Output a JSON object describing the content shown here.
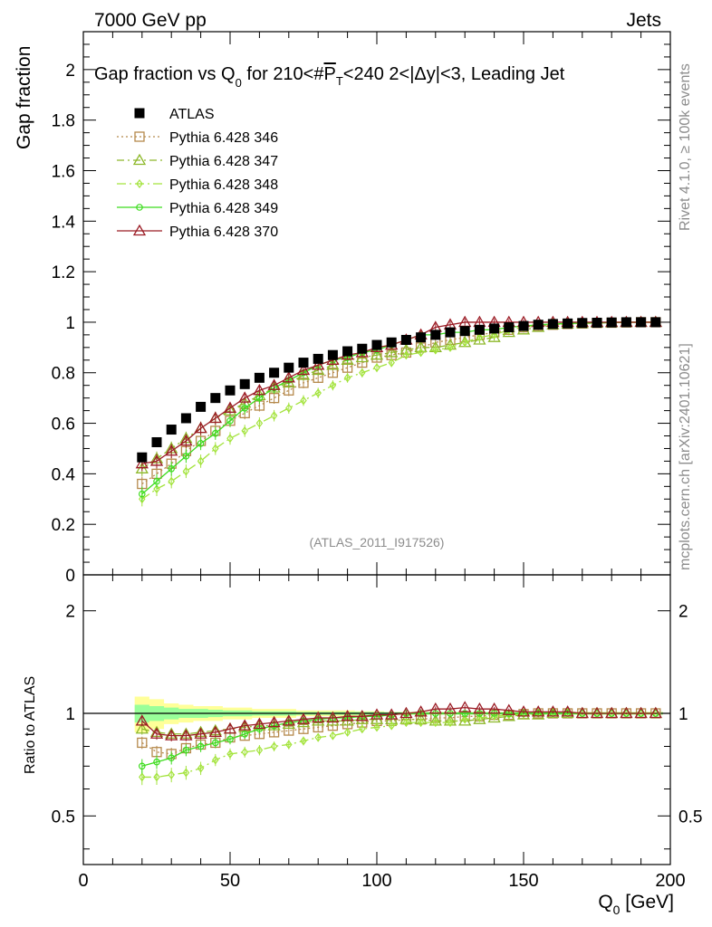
{
  "header": {
    "left": "7000 GeV pp",
    "right": "Jets"
  },
  "side_labels": {
    "rivet": "Rivet 4.1.0, ≥ 100k events",
    "mcplots": "mcplots.cern.ch [arXiv:2401.10621]"
  },
  "colors": {
    "atlas": "#000000",
    "p346": "#b5894b",
    "p347": "#8db82a",
    "p348": "#a3e33c",
    "p349": "#3cdc1d",
    "p370": "#9b1c25",
    "band_yellow": "#ffff99",
    "band_green": "#99ff99"
  },
  "chart_data": [
    {
      "type": "line",
      "title": "Gap fraction vs Q0 for 210<#PT<240  2<|Δy|<3, Leading Jet",
      "title_parts": {
        "a": "Gap fraction vs Q",
        "sub": "0",
        "b": " for 210<#",
        "over": "P",
        "sub2": "T",
        "c": "<240  2<|Δy|<3, Leading Jet"
      },
      "ylabel": "Gap fraction",
      "watermark": "(ATLAS_2011_I917526)",
      "xlim": [
        0,
        200
      ],
      "ylim": [
        0,
        2.15
      ],
      "yticks": [
        "0",
        "0.2",
        "0.4",
        "0.6",
        "0.8",
        "1",
        "1.2",
        "1.4",
        "1.6",
        "1.8",
        "2"
      ],
      "legend": {
        "position": "top-left"
      },
      "x": [
        20,
        25,
        30,
        35,
        40,
        45,
        50,
        55,
        60,
        65,
        70,
        75,
        80,
        85,
        90,
        95,
        100,
        105,
        110,
        115,
        120,
        125,
        130,
        135,
        140,
        145,
        150,
        155,
        160,
        165,
        170,
        175,
        180,
        185,
        190,
        195
      ],
      "series": [
        {
          "key": "atlas",
          "name": "ATLAS",
          "marker": "filled-square",
          "values": [
            0.465,
            0.525,
            0.575,
            0.62,
            0.665,
            0.7,
            0.73,
            0.755,
            0.78,
            0.8,
            0.82,
            0.84,
            0.855,
            0.87,
            0.885,
            0.895,
            0.91,
            0.92,
            0.93,
            0.94,
            0.95,
            0.96,
            0.965,
            0.97,
            0.975,
            0.98,
            0.985,
            0.99,
            0.993,
            0.995,
            0.997,
            0.998,
            0.999,
            1.0,
            1.0,
            1.0
          ]
        },
        {
          "key": "p346",
          "name": "Pythia 6.428 346",
          "marker": "open-square",
          "dash": "2,3",
          "values": [
            0.36,
            0.4,
            0.44,
            0.49,
            0.53,
            0.57,
            0.61,
            0.64,
            0.67,
            0.7,
            0.73,
            0.76,
            0.78,
            0.8,
            0.82,
            0.84,
            0.86,
            0.87,
            0.88,
            0.9,
            0.92,
            0.93,
            0.94,
            0.95,
            0.96,
            0.97,
            0.98,
            0.985,
            0.99,
            0.993,
            0.995,
            0.997,
            0.998,
            0.999,
            1.0,
            1.0
          ]
        },
        {
          "key": "p347",
          "name": "Pythia 6.428 347",
          "marker": "open-triangle",
          "dash": "8,4,2,4",
          "values": [
            0.42,
            0.46,
            0.5,
            0.54,
            0.58,
            0.62,
            0.65,
            0.68,
            0.71,
            0.74,
            0.76,
            0.79,
            0.81,
            0.83,
            0.85,
            0.86,
            0.87,
            0.88,
            0.89,
            0.9,
            0.9,
            0.91,
            0.92,
            0.93,
            0.94,
            0.96,
            0.97,
            0.98,
            0.99,
            0.993,
            0.995,
            0.997,
            0.998,
            0.999,
            1.0,
            1.0
          ]
        },
        {
          "key": "p348",
          "name": "Pythia 6.428 348",
          "marker": "open-diamond",
          "dash": "10,4,2,4",
          "values": [
            0.3,
            0.34,
            0.37,
            0.41,
            0.45,
            0.5,
            0.54,
            0.57,
            0.6,
            0.63,
            0.66,
            0.69,
            0.72,
            0.75,
            0.78,
            0.8,
            0.82,
            0.84,
            0.87,
            0.88,
            0.89,
            0.9,
            0.92,
            0.94,
            0.95,
            0.97,
            0.98,
            0.99,
            0.993,
            0.995,
            0.997,
            0.998,
            0.999,
            1.0,
            1.0,
            1.0
          ]
        },
        {
          "key": "p349",
          "name": "Pythia 6.428 349",
          "marker": "open-circle",
          "dash": "",
          "values": [
            0.32,
            0.37,
            0.42,
            0.47,
            0.52,
            0.56,
            0.61,
            0.66,
            0.7,
            0.74,
            0.77,
            0.8,
            0.83,
            0.85,
            0.86,
            0.88,
            0.89,
            0.91,
            0.93,
            0.95,
            0.95,
            0.96,
            0.96,
            0.97,
            0.97,
            0.98,
            0.985,
            0.99,
            0.993,
            0.995,
            0.997,
            0.998,
            0.999,
            1.0,
            1.0,
            1.0
          ]
        },
        {
          "key": "p370",
          "name": "Pythia 6.428 370",
          "marker": "open-triangle",
          "dash": "",
          "values": [
            0.44,
            0.45,
            0.49,
            0.53,
            0.58,
            0.62,
            0.66,
            0.7,
            0.73,
            0.75,
            0.78,
            0.81,
            0.83,
            0.85,
            0.87,
            0.88,
            0.9,
            0.91,
            0.93,
            0.95,
            0.98,
            0.99,
            1.0,
            1.0,
            1.0,
            1.0,
            1.0,
            1.0,
            1.0,
            1.0,
            1.0,
            1.0,
            1.0,
            1.0,
            1.0,
            1.0
          ]
        }
      ]
    },
    {
      "type": "line",
      "title": "Ratio to ATLAS",
      "ylabel": "Ratio to ATLAS",
      "xlabel": "Q0 [GeV]",
      "xlabel_parts": {
        "a": "Q",
        "sub": "0",
        "b": " [GeV]"
      },
      "xlim": [
        0,
        200
      ],
      "ylim": [
        0.36,
        2.55
      ],
      "yscale": "log",
      "yticks": [
        "0.5",
        "1",
        "2"
      ],
      "xticks": [
        "0",
        "50",
        "100",
        "150",
        "200"
      ],
      "reference": 1,
      "band_yellow_halfwidth": [
        0.12,
        0.1,
        0.07,
        0.06,
        0.05,
        0.05,
        0.04,
        0.04,
        0.03,
        0.03,
        0.03,
        0.02,
        0.02,
        0.02,
        0.02,
        0.015,
        0.015,
        0.01,
        0.01,
        0.01,
        0.01,
        0.01,
        0.01,
        0.01,
        0.01,
        0.01,
        0.01,
        0.01,
        0.01,
        0.01,
        0.01,
        0.01,
        0.01,
        0.01,
        0.01,
        0.01
      ],
      "band_green_halfwidth": [
        0.06,
        0.05,
        0.04,
        0.03,
        0.03,
        0.025,
        0.02,
        0.02,
        0.015,
        0.015,
        0.015,
        0.01,
        0.01,
        0.01,
        0.01,
        0.01,
        0.01,
        0.008,
        0.008,
        0.008,
        0.008,
        0.008,
        0.008,
        0.008,
        0.008,
        0.008,
        0.008,
        0.008,
        0.008,
        0.008,
        0.008,
        0.008,
        0.008,
        0.008,
        0.008,
        0.008
      ],
      "ratio_series": [
        {
          "key": "p346",
          "values": [
            0.82,
            0.77,
            0.76,
            0.79,
            0.81,
            0.82,
            0.85,
            0.86,
            0.87,
            0.88,
            0.89,
            0.9,
            0.91,
            0.92,
            0.93,
            0.94,
            0.95,
            0.95,
            0.96,
            0.96,
            0.97,
            0.97,
            0.98,
            0.98,
            0.99,
            0.99,
            0.995,
            1.0,
            1.0,
            1.0,
            1.0,
            1.0,
            1.0,
            1.0,
            1.0,
            1.0
          ]
        },
        {
          "key": "p347",
          "values": [
            0.9,
            0.88,
            0.87,
            0.87,
            0.88,
            0.89,
            0.9,
            0.91,
            0.92,
            0.92,
            0.93,
            0.94,
            0.95,
            0.95,
            0.95,
            0.96,
            0.96,
            0.96,
            0.96,
            0.96,
            0.95,
            0.95,
            0.95,
            0.96,
            0.97,
            0.98,
            0.99,
            0.99,
            1.0,
            1.0,
            1.0,
            1.0,
            1.0,
            1.0,
            1.0,
            1.0
          ]
        },
        {
          "key": "p348",
          "values": [
            0.65,
            0.65,
            0.66,
            0.67,
            0.69,
            0.73,
            0.76,
            0.77,
            0.78,
            0.8,
            0.81,
            0.83,
            0.85,
            0.86,
            0.88,
            0.9,
            0.91,
            0.92,
            0.94,
            0.94,
            0.94,
            0.94,
            0.96,
            0.97,
            0.98,
            0.99,
            0.995,
            1.0,
            1.0,
            1.0,
            1.0,
            1.0,
            1.0,
            1.0,
            1.0,
            1.0
          ]
        },
        {
          "key": "p349",
          "values": [
            0.7,
            0.72,
            0.74,
            0.78,
            0.8,
            0.82,
            0.84,
            0.87,
            0.9,
            0.92,
            0.94,
            0.95,
            0.96,
            0.97,
            0.97,
            0.98,
            0.98,
            0.99,
            1.0,
            1.0,
            1.0,
            1.0,
            1.0,
            1.0,
            1.0,
            1.0,
            1.0,
            1.0,
            1.0,
            1.0,
            1.0,
            1.0,
            1.0,
            1.0,
            1.0,
            1.0
          ]
        },
        {
          "key": "p370",
          "values": [
            0.95,
            0.87,
            0.86,
            0.86,
            0.87,
            0.88,
            0.9,
            0.92,
            0.93,
            0.94,
            0.95,
            0.96,
            0.97,
            0.97,
            0.98,
            0.98,
            0.99,
            0.99,
            1.0,
            1.01,
            1.03,
            1.03,
            1.04,
            1.03,
            1.03,
            1.02,
            1.01,
            1.01,
            1.01,
            1.01,
            1.0,
            1.0,
            1.0,
            1.0,
            1.0,
            1.0
          ]
        }
      ]
    }
  ]
}
